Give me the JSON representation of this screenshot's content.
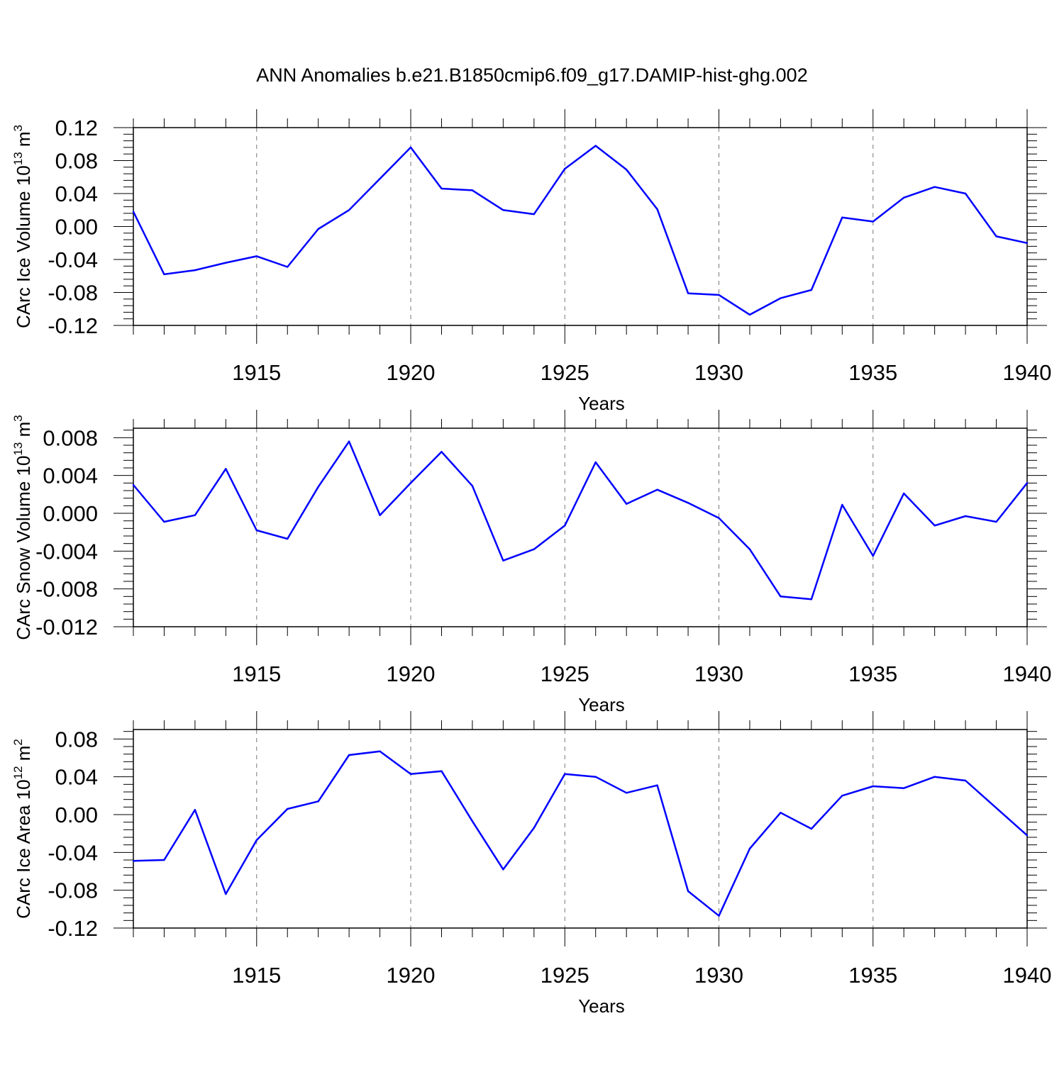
{
  "figure": {
    "title": "ANN Anomalies b.e21.B1850cmip6.f09_g17.DAMIP-hist-ghg.002",
    "line_color": "#0000ff",
    "grid_color": "#777777"
  },
  "chart_data": [
    {
      "type": "line",
      "ylabel_main": "CArc Ice Volume 10",
      "ylabel_exp": "13",
      "ylabel_unit": " m",
      "ylabel_unit_exp": "3",
      "xlabel": "Years",
      "xlim": [
        1911,
        1940
      ],
      "ylim": [
        -0.12,
        0.12
      ],
      "xticks": [
        1915,
        1920,
        1925,
        1930,
        1935,
        1940
      ],
      "xtick_labels": [
        "1915",
        "1920",
        "1925",
        "1930",
        "1935",
        "1940"
      ],
      "yticks": [
        -0.12,
        -0.08,
        -0.04,
        0.0,
        0.04,
        0.08,
        0.12
      ],
      "ytick_labels": [
        "-0.12",
        "-0.08",
        "-0.04",
        "0.00",
        "0.04",
        "0.08",
        "0.12"
      ],
      "grid": "vertical dashed at major x ticks",
      "x": [
        1911,
        1912,
        1913,
        1914,
        1915,
        1916,
        1917,
        1918,
        1919,
        1920,
        1921,
        1922,
        1923,
        1924,
        1925,
        1926,
        1927,
        1928,
        1929,
        1930,
        1931,
        1932,
        1933,
        1934,
        1935,
        1936,
        1937,
        1938,
        1939,
        1940
      ],
      "values": [
        0.018,
        -0.058,
        -0.053,
        -0.044,
        -0.036,
        -0.049,
        -0.003,
        0.02,
        0.058,
        0.096,
        0.046,
        0.044,
        0.02,
        0.015,
        0.07,
        0.098,
        0.069,
        0.021,
        -0.081,
        -0.083,
        -0.107,
        -0.087,
        -0.077,
        0.011,
        0.006,
        0.035,
        0.048,
        0.04,
        -0.012,
        -0.02
      ]
    },
    {
      "type": "line",
      "ylabel_main": "CArc Snow Volume 10",
      "ylabel_exp": "13",
      "ylabel_unit": " m",
      "ylabel_unit_exp": "3",
      "xlabel": "Years",
      "xlim": [
        1911,
        1940
      ],
      "ylim": [
        -0.012,
        0.009
      ],
      "xticks": [
        1915,
        1920,
        1925,
        1930,
        1935,
        1940
      ],
      "xtick_labels": [
        "1915",
        "1920",
        "1925",
        "1930",
        "1935",
        "1940"
      ],
      "yticks": [
        -0.012,
        -0.008,
        -0.004,
        0.0,
        0.004,
        0.008
      ],
      "ytick_labels": [
        "-0.012",
        "-0.008",
        "-0.004",
        "0.000",
        "0.004",
        "0.008"
      ],
      "grid": "vertical dashed at major x ticks",
      "x": [
        1911,
        1912,
        1913,
        1914,
        1915,
        1916,
        1917,
        1918,
        1919,
        1920,
        1921,
        1922,
        1923,
        1924,
        1925,
        1926,
        1927,
        1928,
        1929,
        1930,
        1931,
        1932,
        1933,
        1934,
        1935,
        1936,
        1937,
        1938,
        1939,
        1940
      ],
      "values": [
        0.003,
        -0.0009,
        -0.0002,
        0.0047,
        -0.0018,
        -0.0027,
        0.0028,
        0.0076,
        -0.0002,
        0.0032,
        0.0065,
        0.0029,
        -0.005,
        -0.0038,
        -0.0013,
        0.0054,
        0.001,
        0.0025,
        0.0011,
        -0.0005,
        -0.0038,
        -0.0088,
        -0.0091,
        0.0009,
        -0.0045,
        0.0021,
        -0.0013,
        -0.0003,
        -0.0009,
        0.0032
      ]
    },
    {
      "type": "line",
      "ylabel_main": "CArc Ice Area 10",
      "ylabel_exp": "12",
      "ylabel_unit": " m",
      "ylabel_unit_exp": "2",
      "xlabel": "Years",
      "xlim": [
        1911,
        1940
      ],
      "ylim": [
        -0.12,
        0.09
      ],
      "xticks": [
        1915,
        1920,
        1925,
        1930,
        1935,
        1940
      ],
      "xtick_labels": [
        "1915",
        "1920",
        "1925",
        "1930",
        "1935",
        "1940"
      ],
      "yticks": [
        -0.12,
        -0.08,
        -0.04,
        0.0,
        0.04,
        0.08
      ],
      "ytick_labels": [
        "-0.12",
        "-0.08",
        "-0.04",
        "0.00",
        "0.04",
        "0.08"
      ],
      "grid": "vertical dashed at major x ticks",
      "x": [
        1911,
        1912,
        1913,
        1914,
        1915,
        1916,
        1917,
        1918,
        1919,
        1920,
        1921,
        1922,
        1923,
        1924,
        1925,
        1926,
        1927,
        1928,
        1929,
        1930,
        1931,
        1932,
        1933,
        1934,
        1935,
        1936,
        1937,
        1938,
        1939,
        1940
      ],
      "values": [
        -0.049,
        -0.048,
        0.005,
        -0.084,
        -0.027,
        0.006,
        0.014,
        0.063,
        0.067,
        0.043,
        0.046,
        -0.007,
        -0.058,
        -0.014,
        0.043,
        0.04,
        0.023,
        0.031,
        -0.081,
        -0.107,
        -0.036,
        0.002,
        -0.015,
        0.02,
        0.03,
        0.028,
        0.04,
        0.036,
        0.007,
        -0.022
      ]
    }
  ]
}
